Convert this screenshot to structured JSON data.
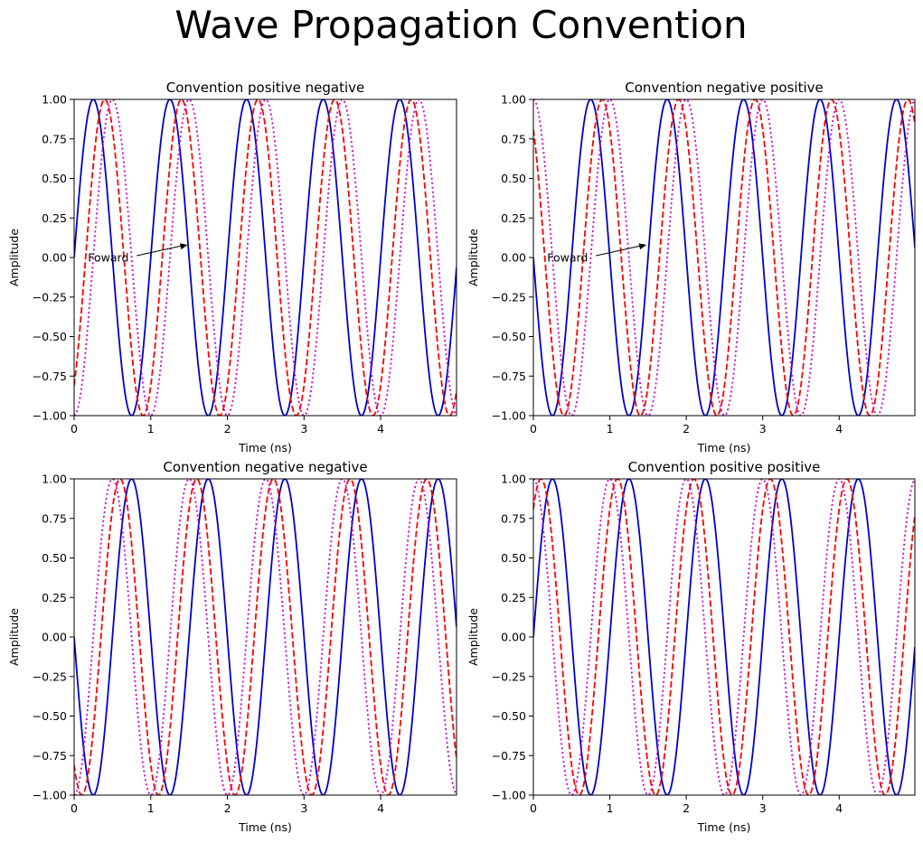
{
  "figure": {
    "suptitle": "Wave Propagation Convention"
  },
  "chart_data": [
    {
      "type": "line",
      "title": "Convention positive negative",
      "xlabel": "Time (ns)",
      "ylabel": "Amplitude",
      "xlim": [
        0,
        4.99
      ],
      "ylim": [
        -1,
        1
      ],
      "x_ticks": [
        "0",
        "1",
        "2",
        "3",
        "4"
      ],
      "y_ticks": [
        "−1.00",
        "−0.75",
        "−0.50",
        "−0.25",
        "0.00",
        "0.25",
        "0.50",
        "0.75",
        "1.00"
      ],
      "wave": {
        "frequency_ghz": 1,
        "time_direction": 1,
        "space_direction": -1
      },
      "series": [
        {
          "offset_ns": 0.0,
          "color": "#0000cc",
          "style": "solid"
        },
        {
          "offset_ns": 0.15,
          "color": "#ff0000",
          "style": "dashed"
        },
        {
          "offset_ns": 0.25,
          "color": "#cc00cc",
          "style": "dotted"
        }
      ],
      "annotation": {
        "text": "Foward",
        "text_x": 0.18,
        "text_y": 0.0,
        "arrow_x": 1.48,
        "arrow_y": 0.08
      }
    },
    {
      "type": "line",
      "title": "Convention negative positive",
      "xlabel": "Time (ns)",
      "ylabel": "Amplitude",
      "xlim": [
        0,
        4.99
      ],
      "ylim": [
        -1,
        1
      ],
      "x_ticks": [
        "0",
        "1",
        "2",
        "3",
        "4"
      ],
      "y_ticks": [
        "−1.00",
        "−0.75",
        "−0.50",
        "−0.25",
        "0.00",
        "0.25",
        "0.50",
        "0.75",
        "1.00"
      ],
      "wave": {
        "frequency_ghz": 1,
        "time_direction": -1,
        "space_direction": 1
      },
      "series": [
        {
          "offset_ns": 0.0,
          "color": "#0000cc",
          "style": "solid"
        },
        {
          "offset_ns": 0.15,
          "color": "#ff0000",
          "style": "dashed"
        },
        {
          "offset_ns": 0.25,
          "color": "#cc00cc",
          "style": "dotted"
        }
      ],
      "annotation": {
        "text": "Foward",
        "text_x": 0.18,
        "text_y": 0.0,
        "arrow_x": 1.48,
        "arrow_y": 0.08
      }
    },
    {
      "type": "line",
      "title": "Convention negative negative",
      "xlabel": "Time (ns)",
      "ylabel": "Amplitude",
      "xlim": [
        0,
        4.99
      ],
      "ylim": [
        -1,
        1
      ],
      "x_ticks": [
        "0",
        "1",
        "2",
        "3",
        "4"
      ],
      "y_ticks": [
        "−1.00",
        "−0.75",
        "−0.50",
        "−0.25",
        "0.00",
        "0.25",
        "0.50",
        "0.75",
        "1.00"
      ],
      "wave": {
        "frequency_ghz": 1,
        "time_direction": -1,
        "space_direction": -1
      },
      "series": [
        {
          "offset_ns": 0.0,
          "color": "#0000cc",
          "style": "solid"
        },
        {
          "offset_ns": 0.15,
          "color": "#ff0000",
          "style": "dashed"
        },
        {
          "offset_ns": 0.25,
          "color": "#cc00cc",
          "style": "dotted"
        }
      ]
    },
    {
      "type": "line",
      "title": "Convention positive positive",
      "xlabel": "Time (ns)",
      "ylabel": "Amplitude",
      "xlim": [
        0,
        4.99
      ],
      "ylim": [
        -1,
        1
      ],
      "x_ticks": [
        "0",
        "1",
        "2",
        "3",
        "4"
      ],
      "y_ticks": [
        "−1.00",
        "−0.75",
        "−0.50",
        "−0.25",
        "0.00",
        "0.25",
        "0.50",
        "0.75",
        "1.00"
      ],
      "wave": {
        "frequency_ghz": 1,
        "time_direction": 1,
        "space_direction": 1
      },
      "series": [
        {
          "offset_ns": 0.0,
          "color": "#0000cc",
          "style": "solid"
        },
        {
          "offset_ns": 0.15,
          "color": "#ff0000",
          "style": "dashed"
        },
        {
          "offset_ns": 0.25,
          "color": "#cc00cc",
          "style": "dotted"
        }
      ]
    }
  ]
}
